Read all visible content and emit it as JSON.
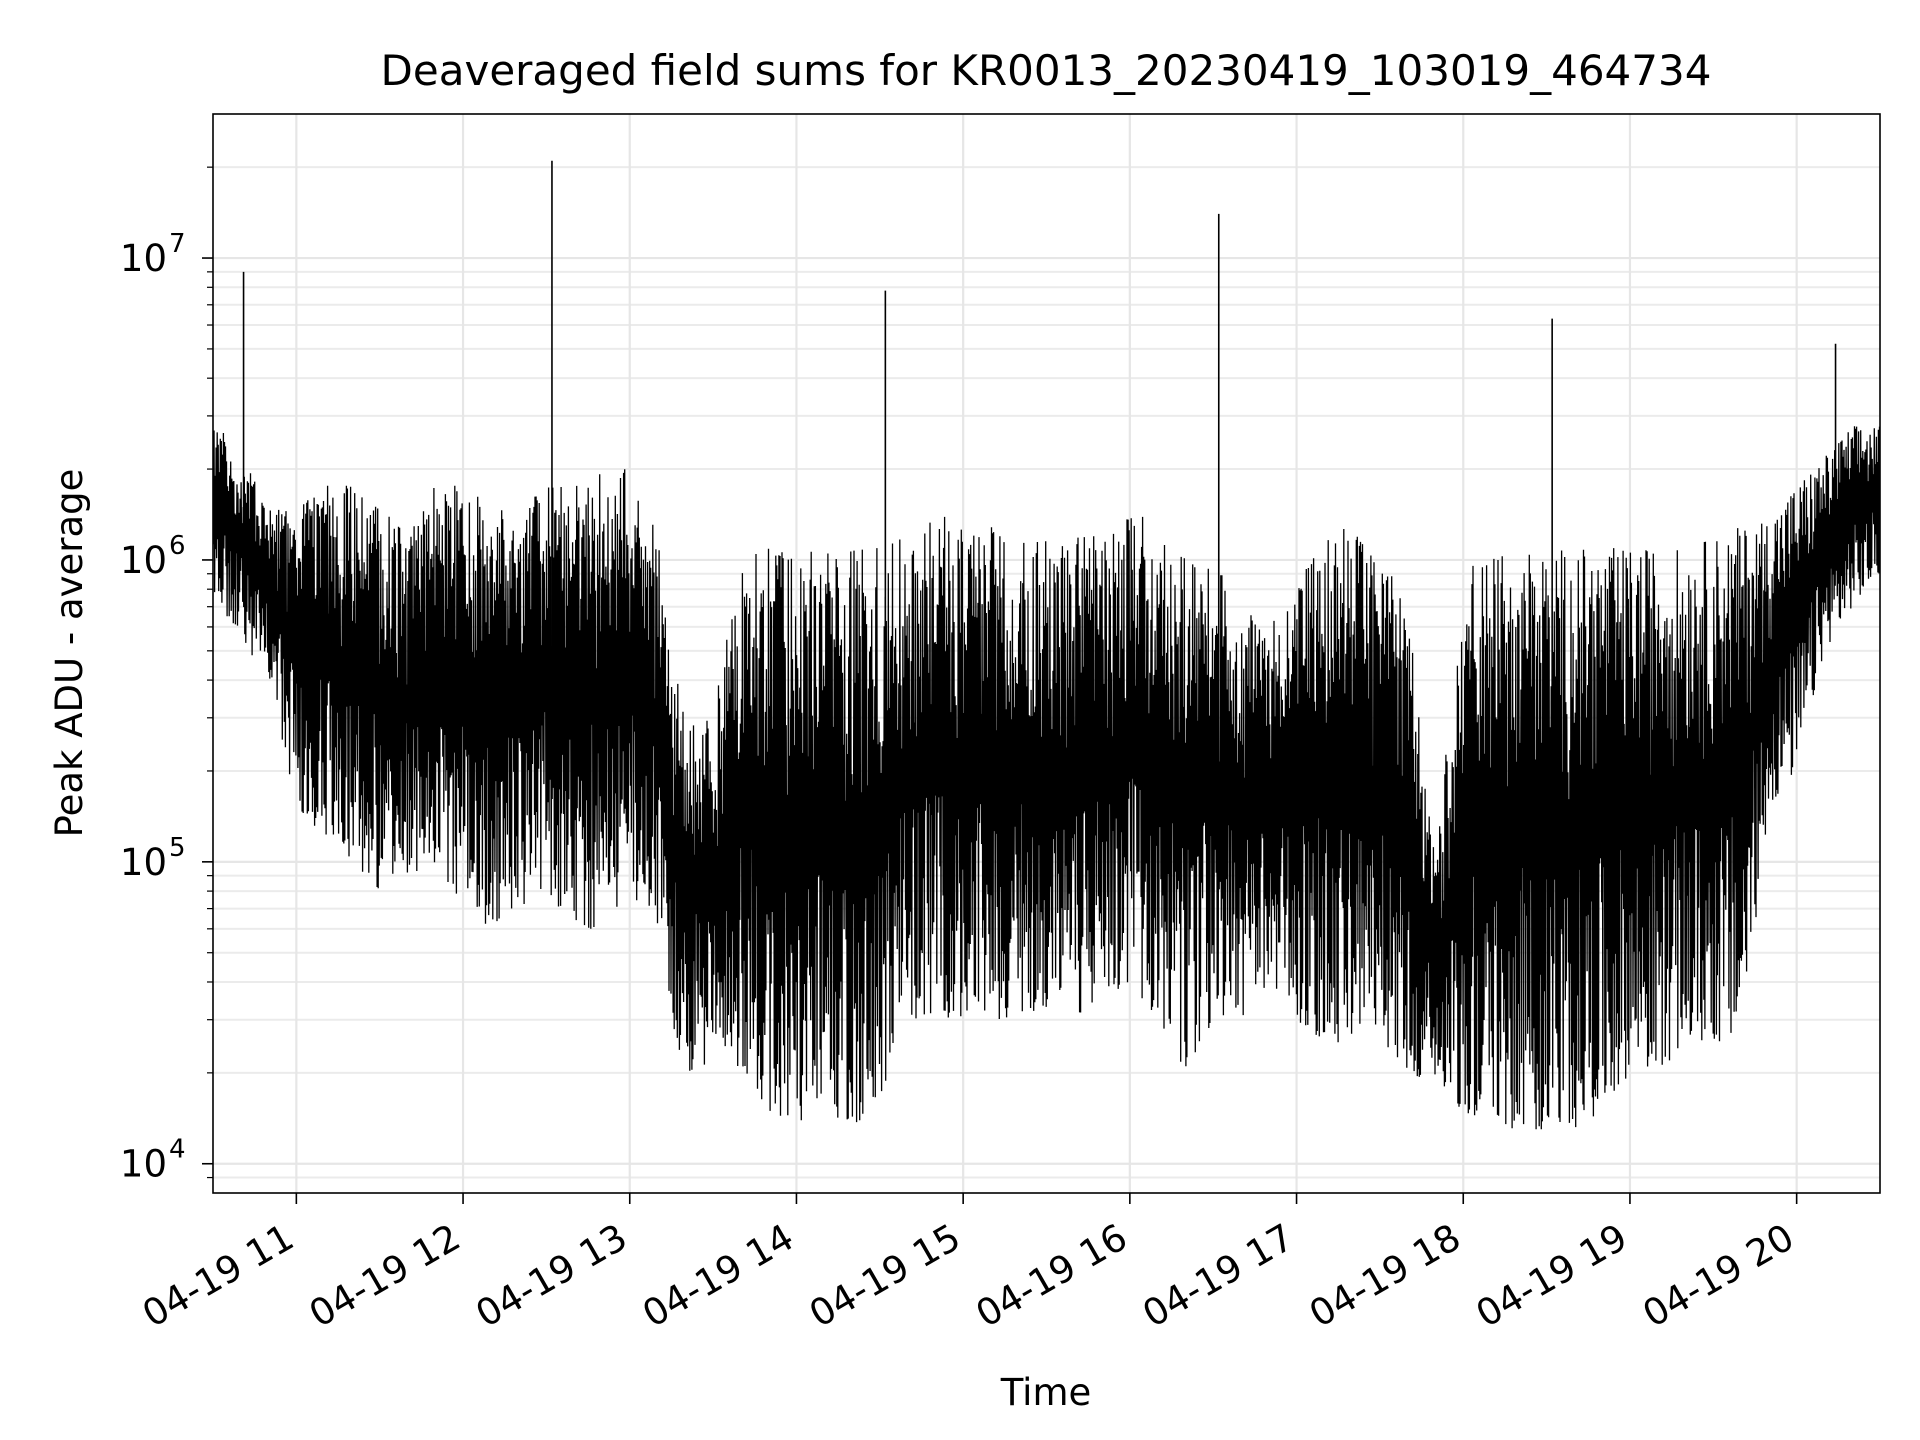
{
  "chart_data": {
    "type": "line",
    "title": "Deaveraged field sums for KR0013_20230419_103019_464734",
    "xlabel": "Time",
    "ylabel": "Peak ADU - average",
    "yscale": "log",
    "ylim": [
      8000,
      30000000
    ],
    "xlim": [
      "2023-04-19 10:30",
      "2023-04-19 20:30"
    ],
    "x_ticks": [
      "2023-04-19 11:00",
      "2023-04-19 12:00",
      "2023-04-19 13:00",
      "2023-04-19 14:00",
      "2023-04-19 15:00",
      "2023-04-19 16:00",
      "2023-04-19 17:00",
      "2023-04-19 18:00",
      "2023-04-19 19:00",
      "2023-04-19 20:00"
    ],
    "x_tick_labels": [
      "04-19 11",
      "04-19 12",
      "04-19 13",
      "04-19 14",
      "04-19 15",
      "04-19 16",
      "04-19 17",
      "04-19 18",
      "04-19 19",
      "04-19 20"
    ],
    "y_ticks": [
      10000,
      100000,
      1000000,
      10000000
    ],
    "y_tick_labels": [
      {
        "base": "10",
        "exp": "4"
      },
      {
        "base": "10",
        "exp": "5"
      },
      {
        "base": "10",
        "exp": "6"
      },
      {
        "base": "10",
        "exp": "7"
      }
    ],
    "grid": true,
    "line_color": "#000000",
    "series": [
      {
        "x": [
          "2023-04-19 10:30",
          "2023-04-19 10:37",
          "2023-04-19 10:43",
          "2023-04-19 10:50",
          "2023-04-19 11:00",
          "2023-04-19 11:10",
          "2023-04-19 11:20",
          "2023-04-19 11:30",
          "2023-04-19 11:40",
          "2023-04-19 11:50",
          "2023-04-19 12:00",
          "2023-04-19 12:10",
          "2023-04-19 12:20",
          "2023-04-19 12:30",
          "2023-04-19 12:40",
          "2023-04-19 12:50",
          "2023-04-19 13:00",
          "2023-04-19 13:10",
          "2023-04-19 13:15",
          "2023-04-19 13:20",
          "2023-04-19 13:30",
          "2023-04-19 13:40",
          "2023-04-19 13:50",
          "2023-04-19 14:00",
          "2023-04-19 14:10",
          "2023-04-19 14:20",
          "2023-04-19 14:30",
          "2023-04-19 14:40",
          "2023-04-19 14:50",
          "2023-04-19 15:00",
          "2023-04-19 15:10",
          "2023-04-19 15:20",
          "2023-04-19 15:30",
          "2023-04-19 15:40",
          "2023-04-19 15:50",
          "2023-04-19 16:00",
          "2023-04-19 16:10",
          "2023-04-19 16:20",
          "2023-04-19 16:30",
          "2023-04-19 16:40",
          "2023-04-19 16:50",
          "2023-04-19 17:00",
          "2023-04-19 17:10",
          "2023-04-19 17:20",
          "2023-04-19 17:30",
          "2023-04-19 17:40",
          "2023-04-19 17:50",
          "2023-04-19 18:00",
          "2023-04-19 18:10",
          "2023-04-19 18:20",
          "2023-04-19 18:30",
          "2023-04-19 18:40",
          "2023-04-19 18:50",
          "2023-04-19 19:00",
          "2023-04-19 19:10",
          "2023-04-19 19:20",
          "2023-04-19 19:30",
          "2023-04-19 19:40",
          "2023-04-19 19:50",
          "2023-04-19 20:00",
          "2023-04-19 20:10",
          "2023-04-19 20:20",
          "2023-04-19 20:30"
        ],
        "low": [
          800000,
          600000,
          500000,
          400000,
          150000,
          120000,
          100000,
          80000,
          90000,
          100000,
          70000,
          60000,
          70000,
          80000,
          60000,
          60000,
          80000,
          60000,
          30000,
          20000,
          20000,
          20000,
          15000,
          13000,
          13000,
          13000,
          15000,
          30000,
          30000,
          30000,
          30000,
          30000,
          30000,
          30000,
          35000,
          40000,
          30000,
          20000,
          30000,
          30000,
          40000,
          30000,
          25000,
          25000,
          25000,
          20000,
          18000,
          15000,
          13000,
          13000,
          13000,
          13000,
          15000,
          20000,
          20000,
          25000,
          25000,
          25000,
          150000,
          200000,
          500000,
          700000,
          900000
        ],
        "high": [
          2800000,
          2500000,
          2000000,
          1500000,
          1500000,
          1800000,
          1800000,
          1500000,
          1200000,
          1800000,
          1800000,
          1500000,
          1500000,
          1800000,
          1800000,
          2000000,
          2000000,
          1200000,
          500000,
          300000,
          300000,
          1100000,
          1100000,
          1100000,
          1100000,
          1100000,
          1100000,
          1200000,
          1400000,
          1400000,
          1300000,
          1200000,
          1200000,
          1200000,
          1200000,
          1400000,
          1400000,
          1000000,
          1000000,
          700000,
          600000,
          900000,
          1200000,
          1300000,
          1100000,
          700000,
          100000,
          1000000,
          1000000,
          1100000,
          1100000,
          1100000,
          1100000,
          1100000,
          1100000,
          1100000,
          1200000,
          1300000,
          1400000,
          1800000,
          2200000,
          2800000,
          2800000
        ]
      }
    ],
    "spikes": [
      {
        "x": "2023-04-19 10:41",
        "y": 9000000
      },
      {
        "x": "2023-04-19 12:32",
        "y": 21000000
      },
      {
        "x": "2023-04-19 14:32",
        "y": 7800000
      },
      {
        "x": "2023-04-19 16:32",
        "y": 14000000
      },
      {
        "x": "2023-04-19 18:32",
        "y": 6300000
      },
      {
        "x": "2023-04-19 20:14",
        "y": 5200000
      }
    ]
  }
}
